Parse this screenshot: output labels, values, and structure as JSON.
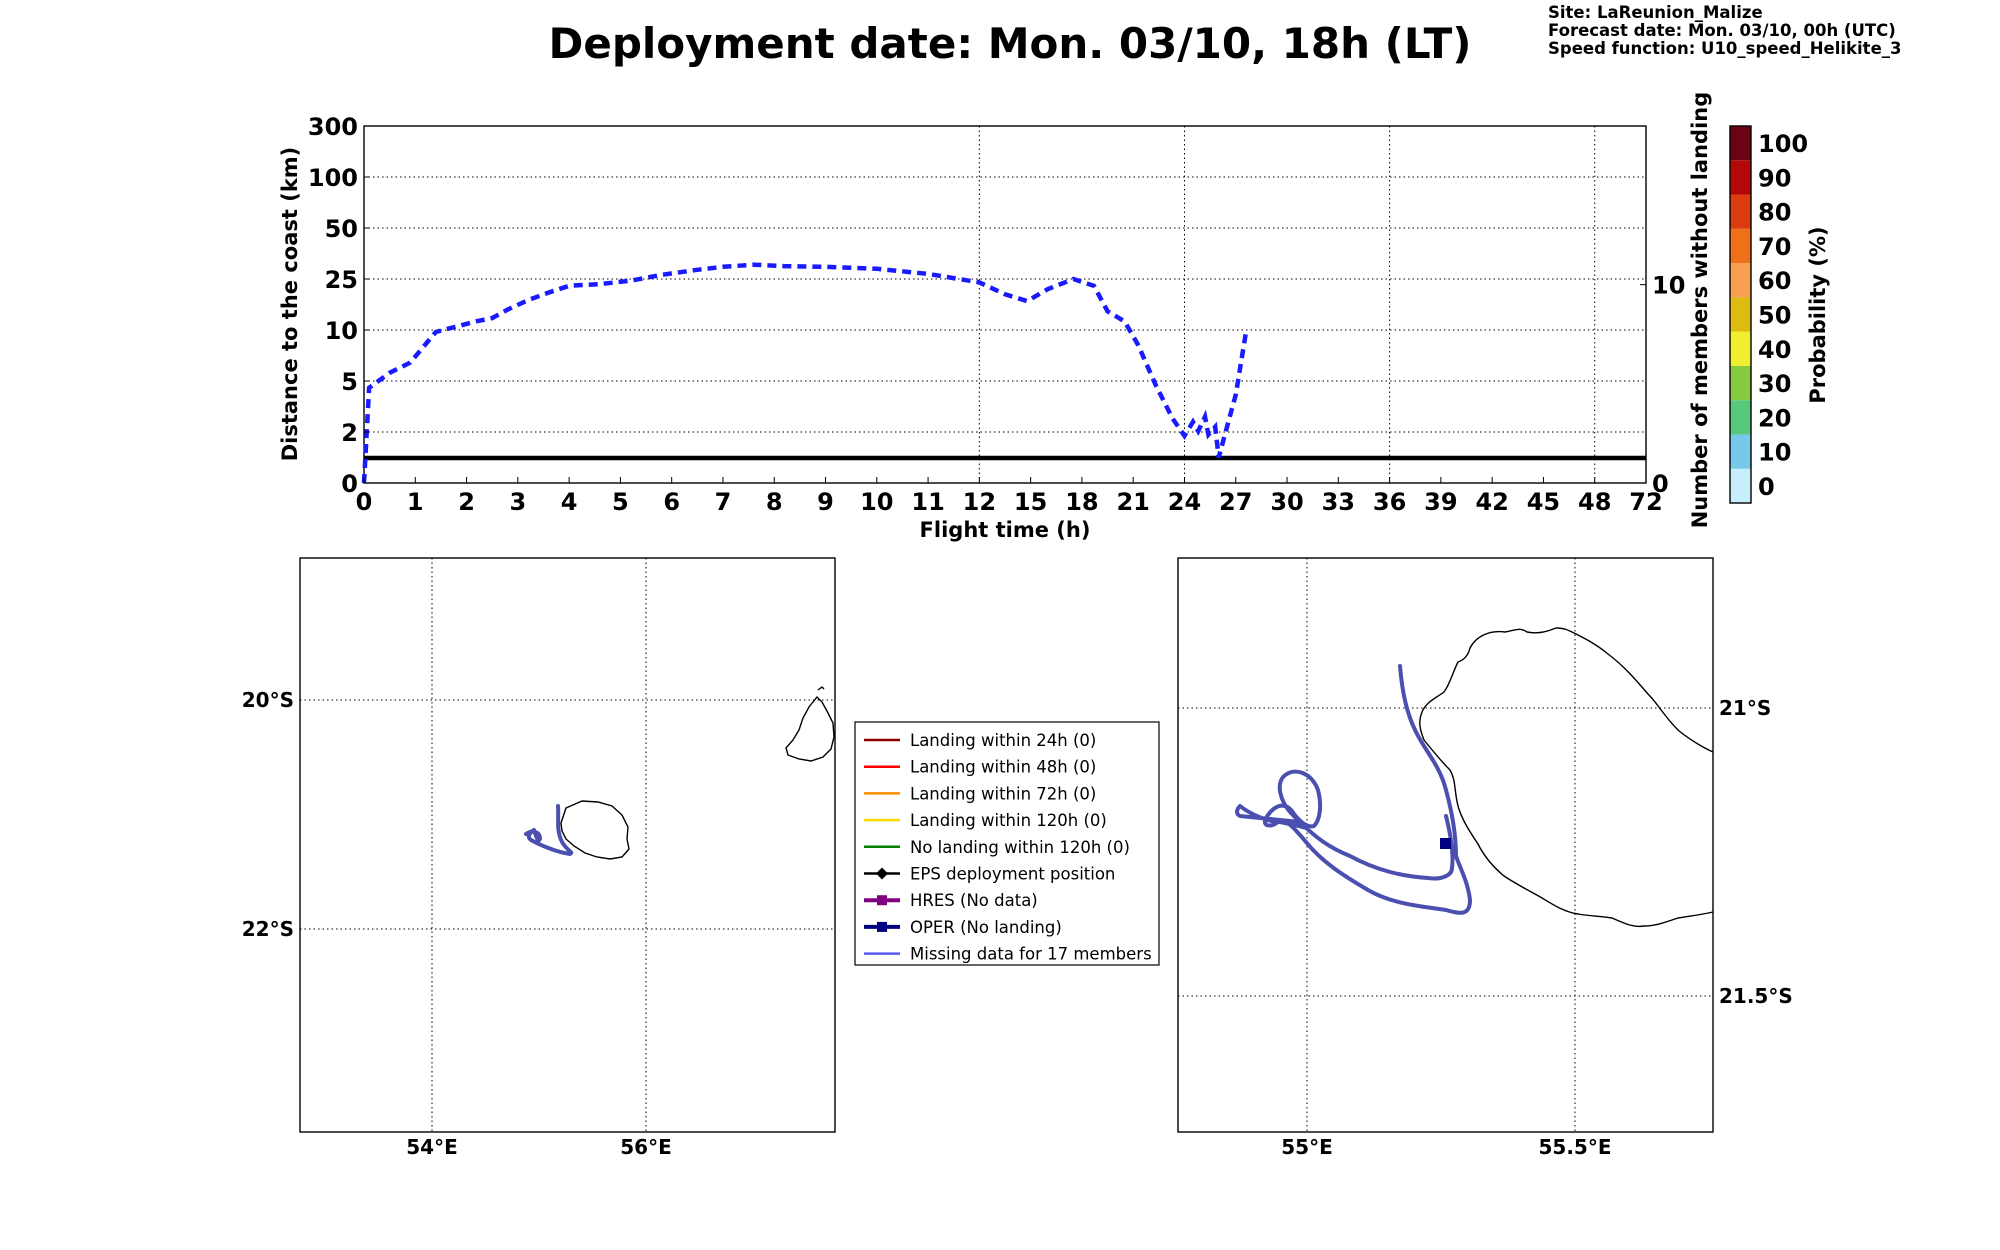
{
  "header": {
    "title": "Deployment date: Mon. 03/10, 18h (LT)",
    "site": "Site: LaReunion_Malize",
    "forecast": "Forecast date: Mon. 03/10, 00h (UTC)",
    "speed": "Speed function: U10_speed_Helikite_3"
  },
  "chart_data": [
    {
      "type": "line",
      "xlabel": "Flight time (h)",
      "ylabel": "Distance to the coast (km)",
      "ylabel_right": "Number of members without landing",
      "x_ticks": [
        "0",
        "1",
        "2",
        "3",
        "4",
        "5",
        "6",
        "7",
        "8",
        "9",
        "10",
        "11",
        "12",
        "15",
        "18",
        "21",
        "24",
        "27",
        "30",
        "33",
        "36",
        "39",
        "42",
        "45",
        "48",
        "72"
      ],
      "y_ticks": [
        "0",
        "2",
        "5",
        "10",
        "25",
        "50",
        "100",
        "300"
      ],
      "y_right_ticks": [
        "0",
        "10"
      ],
      "xlim": [
        0,
        72
      ],
      "ylim": [
        0,
        300
      ],
      "series": [
        {
          "style": "dashed",
          "color": "#1a1aff",
          "x": [
            0,
            0.1,
            0.5,
            0.9,
            1.1,
            1.4,
            1.8,
            2.2,
            2.5,
            2.8,
            3.2,
            3.6,
            4.0,
            4.6,
            5.2,
            5.8,
            6.5,
            7.0,
            7.6,
            8.2,
            9.0,
            10.0,
            11.0,
            12.0,
            13.5,
            14.8,
            16.0,
            17.5,
            18.7,
            19.5,
            20.5,
            21.3,
            22.3,
            23.3,
            24.0,
            24.5,
            24.8,
            25.2,
            25.4,
            25.8,
            26.0,
            27.0,
            27.6
          ],
          "y": [
            0,
            4.6,
            5.8,
            6.8,
            8.0,
            9.8,
            11.0,
            12.6,
            13.5,
            16.0,
            18.8,
            21.0,
            23.0,
            23.5,
            24.5,
            27.0,
            29.5,
            31.0,
            32.0,
            31.3,
            31.0,
            30.0,
            27.5,
            24.0,
            20.5,
            18.5,
            22.0,
            25.0,
            23.0,
            15.5,
            12.5,
            8.5,
            4.8,
            2.8,
            1.85,
            2.6,
            2.05,
            2.9,
            1.9,
            2.3,
            1.0,
            4.2,
            9.8
          ]
        }
      ],
      "horizontal_line": {
        "y": 1,
        "color": "#000000"
      },
      "colorbar": {
        "label": "Probability (%)",
        "ticks": [
          "0",
          "10",
          "20",
          "30",
          "40",
          "50",
          "60",
          "70",
          "80",
          "90",
          "100"
        ],
        "colors": [
          "#c8eefc",
          "#78c8ea",
          "#58c87c",
          "#86cc40",
          "#f0f030",
          "#dcbc10",
          "#f8a050",
          "#ee7018",
          "#dc3c10",
          "#b40808",
          "#6a0414"
        ]
      }
    },
    {
      "type": "map",
      "name": "overview",
      "lon_ticks": [
        "54°E",
        "56°E"
      ],
      "lat_ticks": [
        "20°S",
        "22°S"
      ],
      "track_color": "#4a4fb0"
    },
    {
      "type": "map",
      "name": "zoom",
      "lon_ticks": [
        "55°E",
        "55.5°E"
      ],
      "lat_ticks": [
        "21°S",
        "21.5°S"
      ],
      "track_color": "#4a4fb0",
      "oper_marker_color": "#000080"
    }
  ],
  "legend": {
    "items": [
      {
        "label": "Landing within 24h (0)",
        "color": "#8b0000",
        "marker": "none"
      },
      {
        "label": "Landing within 48h (0)",
        "color": "#ff0000",
        "marker": "none"
      },
      {
        "label": "Landing within 72h (0)",
        "color": "#ff8c00",
        "marker": "none"
      },
      {
        "label": "Landing within 120h (0)",
        "color": "#ffd700",
        "marker": "none"
      },
      {
        "label": "No landing within 120h (0)",
        "color": "#008000",
        "marker": "none"
      },
      {
        "label": "EPS deployment position",
        "color": "#000000",
        "marker": "diamond"
      },
      {
        "label": "HRES (No data)",
        "color": "#800080",
        "marker": "square"
      },
      {
        "label": "OPER (No landing)",
        "color": "#000080",
        "marker": "square"
      },
      {
        "label": "Missing data for 17 members",
        "color": "#5a5cf0",
        "marker": "none"
      }
    ]
  }
}
